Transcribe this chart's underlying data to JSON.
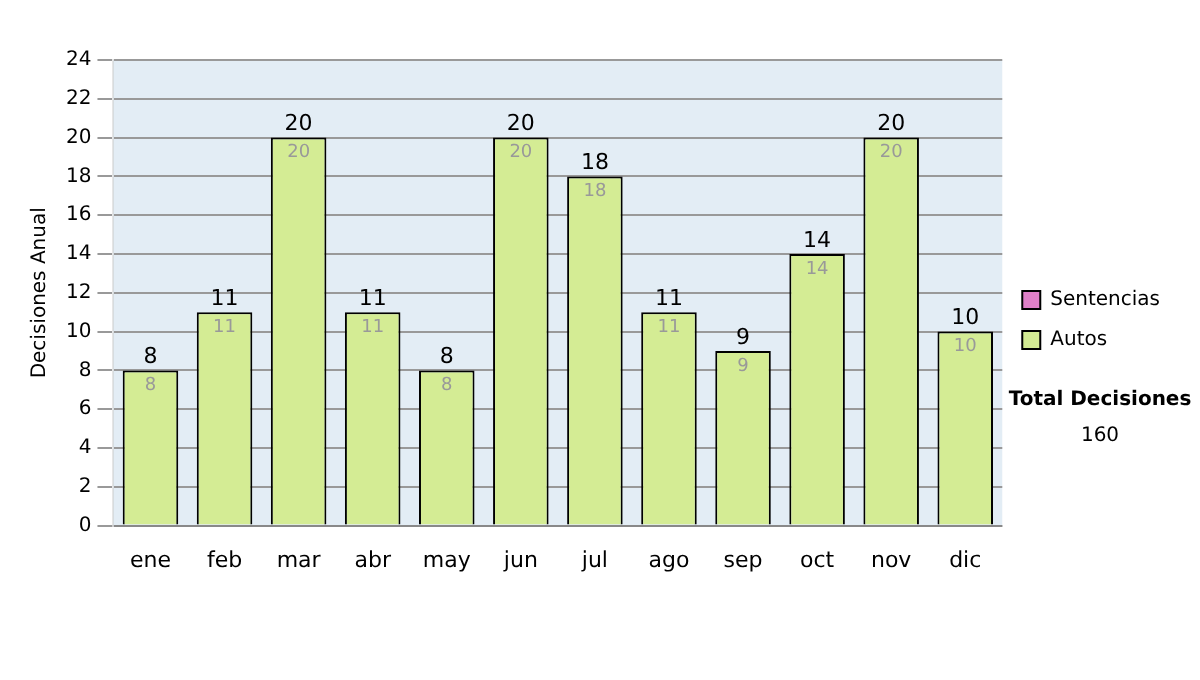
{
  "chart_data": {
    "type": "bar",
    "ylabel": "Decisiones Anual",
    "categories": [
      "ene",
      "feb",
      "mar",
      "abr",
      "may",
      "jun",
      "jul",
      "ago",
      "sep",
      "oct",
      "nov",
      "dic"
    ],
    "series": [
      {
        "name": "Sentencias",
        "color": "#e080c8",
        "values": [
          0,
          0,
          0,
          0,
          0,
          0,
          0,
          0,
          0,
          0,
          0,
          0
        ],
        "value_labels": [
          null,
          null,
          null,
          null,
          null,
          null,
          null,
          null,
          null,
          null,
          null,
          null
        ]
      },
      {
        "name": "Autos",
        "color": "#d4ec94",
        "values": [
          8,
          11,
          20,
          11,
          8,
          20,
          18,
          11,
          9,
          14,
          20,
          10
        ],
        "value_labels": [
          "8",
          "11",
          "20",
          "11",
          "8",
          "20",
          "18",
          "11",
          "9",
          "14",
          "20",
          "10"
        ]
      }
    ],
    "stacked": true,
    "totals": [
      "8",
      "11",
      "20",
      "11",
      "8",
      "20",
      "18",
      "11",
      "9",
      "14",
      "20",
      "10"
    ],
    "ylim": [
      0,
      24
    ],
    "yticks": [
      0,
      2,
      4,
      6,
      8,
      10,
      12,
      14,
      16,
      18,
      20,
      22,
      24
    ],
    "grid": "y",
    "legend": "right",
    "annotations": [
      "Total Decisiones",
      "160"
    ]
  }
}
